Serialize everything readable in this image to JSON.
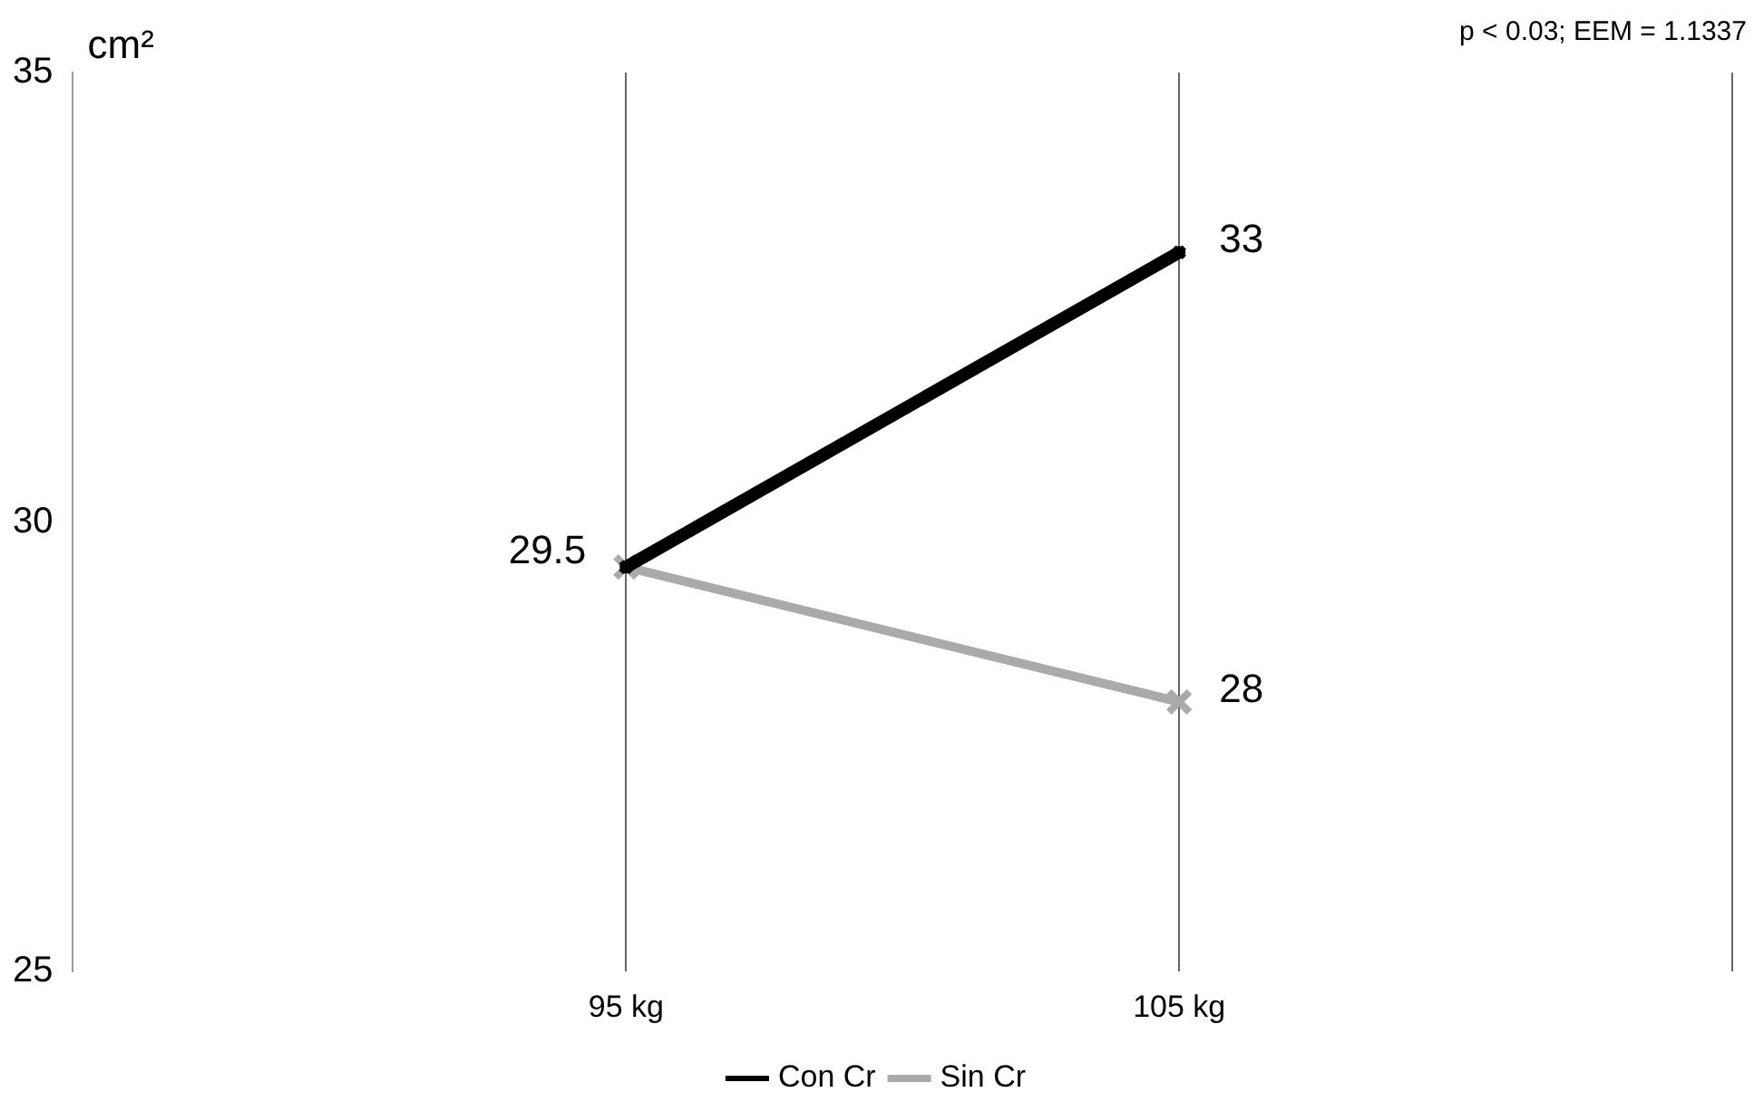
{
  "chart_data": {
    "type": "line",
    "ylabel": "cm²",
    "annotations": [
      "p < 0.03; EEM = 1.1337"
    ],
    "categories": [
      null,
      "95 kg",
      "105 kg",
      null
    ],
    "series": [
      {
        "name": "Con Cr",
        "color": "#000000",
        "values": [
          null,
          29.5,
          33,
          null
        ],
        "value_labels": [
          null,
          "29.5",
          "33",
          null
        ]
      },
      {
        "name": "Sin Cr",
        "color": "#aaaaaa",
        "values": [
          null,
          29.5,
          28,
          null
        ],
        "value_labels": [
          null,
          null,
          "28",
          null
        ]
      }
    ],
    "ylim": [
      25,
      35
    ],
    "yticks": [
      25,
      30,
      35
    ],
    "grid": "x",
    "legend": "bottom",
    "marker": "cross",
    "line_style": "solid"
  }
}
